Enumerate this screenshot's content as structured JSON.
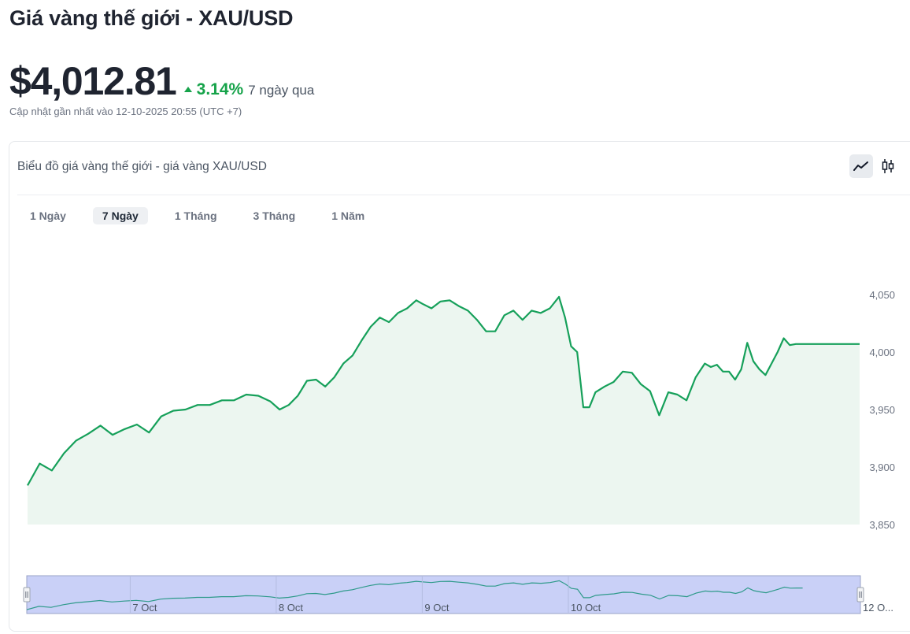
{
  "header": {
    "title": "Giá vàng thế giới - XAU/USD",
    "price": "$4,012.81",
    "change_pct": "3.14%",
    "change_period": "7 ngày qua",
    "updated": "Cập nhật gần nhất vào 12-10-2025 20:55 (UTC +7)"
  },
  "card": {
    "title": "Biểu đồ giá vàng thế giới - giá vàng XAU/USD",
    "chart_types": [
      {
        "icon": "line-chart-icon",
        "active": true
      },
      {
        "icon": "candlestick-icon",
        "active": false
      }
    ],
    "ranges": [
      {
        "label": "1 Ngày",
        "active": false
      },
      {
        "label": "7 Ngày",
        "active": true
      },
      {
        "label": "1 Tháng",
        "active": false
      },
      {
        "label": "3 Tháng",
        "active": false
      },
      {
        "label": "1 Năm",
        "active": false
      }
    ]
  },
  "colors": {
    "line": "#16a05a",
    "area": "#ecf6f0",
    "up": "#16a34a",
    "navigator_fill": "#c9d0f7",
    "navigator_line": "#2e9a8a"
  },
  "chart_data": {
    "type": "area",
    "title": "",
    "xlabel": "",
    "ylabel": "",
    "ylim": [
      3850,
      4065
    ],
    "y_ticks": [
      "3,850",
      "3,900",
      "3,950",
      "4,000",
      "4,050"
    ],
    "y_tick_values": [
      3850,
      3900,
      3950,
      4000,
      4050
    ],
    "x_range": [
      "2025-10-06T07:00",
      "2025-10-12T00:00"
    ],
    "navigator_labels": [
      {
        "label": "7 Oct",
        "x": "2025-10-07T00:00"
      },
      {
        "label": "8 Oct",
        "x": "2025-10-08T00:00"
      },
      {
        "label": "9 Oct",
        "x": "2025-10-09T00:00"
      },
      {
        "label": "10 Oct",
        "x": "2025-10-10T00:00"
      },
      {
        "label": "12 O...",
        "x": "2025-10-12T00:00"
      }
    ],
    "series": [
      {
        "values": [
          [
            "2025-10-06T07:00",
            3884
          ],
          [
            "2025-10-06T09:00",
            3903
          ],
          [
            "2025-10-06T11:00",
            3897
          ],
          [
            "2025-10-06T13:00",
            3912
          ],
          [
            "2025-10-06T15:00",
            3923
          ],
          [
            "2025-10-06T17:00",
            3929
          ],
          [
            "2025-10-06T19:00",
            3936
          ],
          [
            "2025-10-06T21:00",
            3928
          ],
          [
            "2025-10-06T23:00",
            3933
          ],
          [
            "2025-10-07T01:00",
            3937
          ],
          [
            "2025-10-07T03:00",
            3930
          ],
          [
            "2025-10-07T05:00",
            3944
          ],
          [
            "2025-10-07T07:00",
            3949
          ],
          [
            "2025-10-07T09:00",
            3950
          ],
          [
            "2025-10-07T11:00",
            3954
          ],
          [
            "2025-10-07T13:00",
            3954
          ],
          [
            "2025-10-07T15:00",
            3958
          ],
          [
            "2025-10-07T17:00",
            3958
          ],
          [
            "2025-10-07T19:00",
            3963
          ],
          [
            "2025-10-07T21:00",
            3962
          ],
          [
            "2025-10-07T23:00",
            3957
          ],
          [
            "2025-10-08T00:30",
            3950
          ],
          [
            "2025-10-08T02:00",
            3954
          ],
          [
            "2025-10-08T03:30",
            3962
          ],
          [
            "2025-10-08T05:00",
            3975
          ],
          [
            "2025-10-08T06:30",
            3976
          ],
          [
            "2025-10-08T08:00",
            3970
          ],
          [
            "2025-10-08T09:30",
            3978
          ],
          [
            "2025-10-08T11:00",
            3990
          ],
          [
            "2025-10-08T12:30",
            3997
          ],
          [
            "2025-10-08T14:00",
            4010
          ],
          [
            "2025-10-08T15:30",
            4022
          ],
          [
            "2025-10-08T17:00",
            4030
          ],
          [
            "2025-10-08T18:30",
            4026
          ],
          [
            "2025-10-08T20:00",
            4034
          ],
          [
            "2025-10-08T21:30",
            4038
          ],
          [
            "2025-10-08T23:00",
            4045
          ],
          [
            "2025-10-09T00:00",
            4042
          ],
          [
            "2025-10-09T01:30",
            4038
          ],
          [
            "2025-10-09T03:00",
            4044
          ],
          [
            "2025-10-09T04:30",
            4045
          ],
          [
            "2025-10-09T06:00",
            4040
          ],
          [
            "2025-10-09T07:30",
            4036
          ],
          [
            "2025-10-09T09:00",
            4028
          ],
          [
            "2025-10-09T10:30",
            4018
          ],
          [
            "2025-10-09T12:00",
            4018
          ],
          [
            "2025-10-09T13:30",
            4032
          ],
          [
            "2025-10-09T15:00",
            4036
          ],
          [
            "2025-10-09T16:30",
            4028
          ],
          [
            "2025-10-09T18:00",
            4036
          ],
          [
            "2025-10-09T19:30",
            4034
          ],
          [
            "2025-10-09T21:00",
            4038
          ],
          [
            "2025-10-09T22:30",
            4048
          ],
          [
            "2025-10-09T23:30",
            4030
          ],
          [
            "2025-10-10T00:30",
            4005
          ],
          [
            "2025-10-10T01:30",
            4000
          ],
          [
            "2025-10-10T02:30",
            3952
          ],
          [
            "2025-10-10T03:30",
            3952
          ],
          [
            "2025-10-10T04:30",
            3965
          ],
          [
            "2025-10-10T06:00",
            3970
          ],
          [
            "2025-10-10T07:30",
            3974
          ],
          [
            "2025-10-10T09:00",
            3983
          ],
          [
            "2025-10-10T10:30",
            3982
          ],
          [
            "2025-10-10T12:00",
            3972
          ],
          [
            "2025-10-10T13:30",
            3966
          ],
          [
            "2025-10-10T15:00",
            3945
          ],
          [
            "2025-10-10T16:30",
            3965
          ],
          [
            "2025-10-10T18:00",
            3963
          ],
          [
            "2025-10-10T19:30",
            3958
          ],
          [
            "2025-10-10T21:00",
            3978
          ],
          [
            "2025-10-10T22:30",
            3990
          ],
          [
            "2025-10-10T23:30",
            3987
          ],
          [
            "2025-10-11T00:30",
            3989
          ],
          [
            "2025-10-11T01:30",
            3983
          ],
          [
            "2025-10-11T02:30",
            3983
          ],
          [
            "2025-10-11T03:30",
            3976
          ],
          [
            "2025-10-11T04:30",
            3985
          ],
          [
            "2025-10-11T05:30",
            4008
          ],
          [
            "2025-10-11T06:30",
            3992
          ],
          [
            "2025-10-11T07:30",
            3985
          ],
          [
            "2025-10-11T08:30",
            3980
          ],
          [
            "2025-10-11T09:30",
            3990
          ],
          [
            "2025-10-11T10:30",
            4000
          ],
          [
            "2025-10-11T11:30",
            4012
          ],
          [
            "2025-10-11T12:30",
            4006
          ],
          [
            "2025-10-11T13:30",
            4007
          ],
          [
            "2025-10-11T14:30",
            4007
          ]
        ]
      }
    ],
    "grid": false,
    "legend": "none"
  }
}
